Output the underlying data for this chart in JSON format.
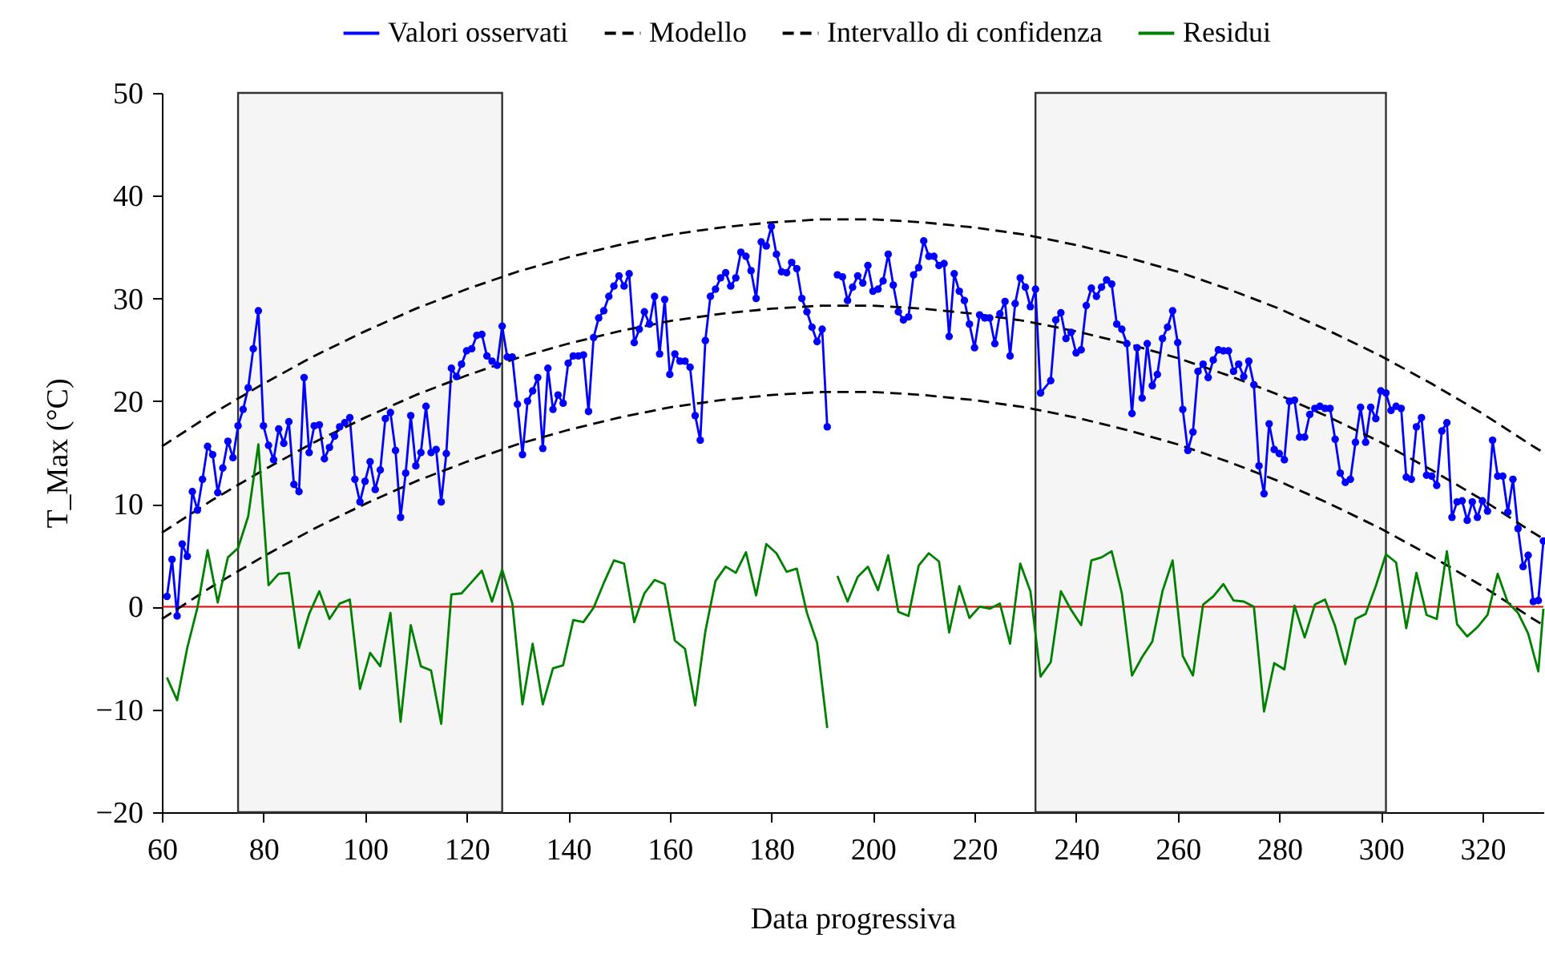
{
  "chart_data": {
    "type": "line",
    "xlabel": "Data progressiva",
    "ylabel": "T_Max (°C)",
    "xlim": [
      60,
      332
    ],
    "ylim": [
      -20,
      50
    ],
    "xticks": [
      60,
      80,
      100,
      120,
      140,
      160,
      180,
      200,
      220,
      240,
      260,
      280,
      300,
      320
    ],
    "yticks": [
      -20,
      -10,
      0,
      10,
      20,
      30,
      40,
      50
    ],
    "grid": false,
    "legend": "top",
    "ref_lines": [
      {
        "axis": "y",
        "value": 0,
        "color": "#e00000"
      }
    ],
    "bands": [
      {
        "axis": "x",
        "from": 75,
        "to": 127,
        "color": "#333333"
      },
      {
        "axis": "x",
        "from": 232,
        "to": 301,
        "color": "#333333"
      }
    ],
    "series": [
      {
        "name": "Valori osservati",
        "color": "#0000ff",
        "marker": "circle",
        "line_style": "solid",
        "x": [
          61,
          62,
          63,
          64,
          65,
          66,
          67,
          68,
          69,
          70,
          71,
          72,
          73,
          74,
          75,
          76,
          77,
          78,
          79,
          80,
          81,
          82,
          83,
          84,
          85,
          86,
          87,
          88,
          89,
          90,
          91,
          92,
          93,
          94,
          95,
          96,
          97,
          98,
          99,
          100,
          101,
          102,
          103,
          104,
          105,
          106,
          107,
          108,
          109,
          110,
          111,
          112,
          113,
          114,
          115,
          116,
          117,
          118,
          119,
          120,
          121,
          122,
          123,
          124,
          125,
          126,
          127,
          128,
          129,
          130,
          131,
          132,
          133,
          134,
          135,
          136,
          137,
          138,
          139,
          140,
          141,
          142,
          143,
          144,
          145,
          146,
          147,
          148,
          149,
          150,
          151,
          152,
          153,
          154,
          155,
          156,
          157,
          158,
          159,
          160,
          161,
          162,
          163,
          164,
          165,
          166,
          167,
          168,
          169,
          170,
          171,
          172,
          173,
          174,
          175,
          176,
          177,
          178,
          179,
          180,
          181,
          182,
          183,
          184,
          185,
          186,
          187,
          188,
          189,
          190,
          191,
          192,
          193,
          194,
          195,
          196,
          197,
          198,
          199,
          200,
          201,
          202,
          203,
          204,
          205,
          206,
          207,
          208,
          209,
          210,
          211,
          212,
          213,
          214,
          215,
          216,
          217,
          218,
          219,
          220,
          221,
          222,
          223,
          224,
          225,
          226,
          227,
          228,
          229,
          230,
          231,
          232,
          233,
          235,
          236,
          237,
          238,
          239,
          240,
          241,
          242,
          243,
          244,
          245,
          246,
          247,
          248,
          249,
          250,
          251,
          252,
          253,
          254,
          255,
          256,
          257,
          258,
          259,
          260,
          261,
          262,
          263,
          264,
          265,
          266,
          267,
          268,
          269,
          270,
          271,
          272,
          273,
          274,
          275,
          276,
          277,
          278,
          279,
          280,
          281,
          282,
          283,
          284,
          285,
          286,
          287,
          288,
          289,
          290,
          291,
          292,
          293,
          294,
          295,
          296,
          297,
          298,
          299,
          300,
          301,
          302,
          303,
          304,
          305,
          306,
          307,
          308,
          309,
          310,
          311,
          312,
          313,
          314,
          315,
          316,
          317,
          318,
          319,
          320,
          321,
          322,
          323,
          324,
          325,
          326,
          327,
          328,
          329,
          330,
          331,
          332
        ],
        "values": [
          1.0,
          4.6,
          -0.9,
          6.1,
          4.9,
          11.2,
          9.4,
          12.4,
          15.6,
          14.8,
          11.1,
          13.5,
          16.1,
          14.5,
          17.6,
          19.2,
          21.3,
          25.1,
          28.8,
          17.6,
          15.7,
          14.3,
          17.3,
          15.9,
          18.0,
          11.9,
          11.2,
          22.3,
          15.0,
          17.6,
          17.7,
          14.4,
          15.5,
          16.6,
          17.5,
          17.9,
          18.4,
          12.4,
          10.2,
          12.2,
          14.1,
          11.4,
          13.3,
          18.3,
          18.9,
          15.2,
          8.7,
          13.0,
          18.6,
          13.7,
          15.0,
          19.5,
          15.0,
          15.3,
          10.2,
          14.9,
          23.2,
          22.4,
          23.6,
          24.9,
          25.1,
          26.4,
          26.5,
          24.4,
          23.9,
          23.5,
          27.3,
          24.3,
          24.3,
          19.7,
          14.8,
          20.0,
          21.0,
          22.3,
          15.4,
          23.2,
          19.2,
          20.6,
          19.8,
          23.7,
          24.4,
          24.4,
          24.5,
          19.0,
          26.2,
          28.1,
          28.8,
          30.2,
          31.2,
          32.2,
          31.2,
          32.4,
          25.7,
          27.0,
          28.7,
          27.5,
          30.2,
          24.6,
          29.9,
          22.6,
          24.6,
          23.9,
          23.9,
          23.3,
          18.6,
          16.2,
          25.9,
          30.2,
          30.9,
          32.0,
          32.5,
          31.2,
          32.0,
          34.5,
          34.1,
          32.7,
          30.0,
          35.5,
          35.1,
          37.0,
          34.3,
          32.6,
          32.5,
          33.5,
          32.9,
          30.0,
          28.7,
          27.2,
          25.8,
          27.0,
          17.5,
          null,
          32.3,
          32.1,
          29.8,
          31.1,
          32.2,
          31.5,
          33.2,
          30.7,
          30.9,
          31.7,
          34.3,
          31.3,
          28.7,
          27.9,
          28.2,
          32.3,
          33.0,
          35.6,
          34.1,
          34.1,
          33.2,
          33.4,
          26.3,
          32.4,
          30.7,
          29.8,
          27.5,
          25.2,
          28.4,
          28.1,
          28.1,
          25.6,
          28.5,
          29.7,
          24.4,
          29.5,
          32.0,
          31.1,
          29.2,
          30.9,
          20.8,
          22.0,
          27.9,
          28.6,
          26.1,
          26.7,
          24.7,
          25.0,
          29.3,
          31.0,
          30.2,
          31.1,
          31.8,
          31.4,
          27.5,
          27.0,
          25.6,
          18.8,
          25.2,
          20.3,
          25.6,
          21.5,
          22.6,
          26.1,
          27.2,
          28.8,
          25.7,
          19.2,
          15.2,
          17.0,
          22.9,
          23.6,
          22.3,
          24.0,
          25.0,
          24.9,
          24.9,
          22.9,
          23.6,
          22.4,
          23.9,
          21.6,
          13.7,
          11.0,
          17.8,
          15.3,
          14.9,
          14.3,
          20.0,
          20.1,
          16.5,
          16.5,
          18.7,
          19.3,
          19.5,
          19.3,
          19.3,
          16.3,
          13.0,
          12.1,
          12.4,
          16.0,
          19.4,
          16.0,
          19.4,
          18.3,
          21.0,
          20.8,
          19.1,
          19.5,
          19.3,
          12.6,
          12.4,
          17.5,
          18.4,
          12.8,
          12.7,
          11.8,
          17.1,
          17.9,
          8.7,
          10.2,
          10.3,
          8.4,
          10.2,
          8.7,
          10.3,
          9.3,
          16.2,
          12.7,
          12.7,
          9.2,
          12.4,
          7.6,
          3.9,
          5.0,
          0.5,
          0.6,
          6.4
        ]
      },
      {
        "name": "Modello",
        "color": "#000000",
        "line_style": "dashed",
        "x": [
          60,
          70,
          80,
          90,
          100,
          110,
          120,
          130,
          140,
          150,
          160,
          170,
          180,
          190,
          200,
          210,
          220,
          230,
          240,
          250,
          260,
          270,
          280,
          290,
          300,
          310,
          320,
          330,
          332
        ],
        "values": [
          7.2,
          10.4,
          13.3,
          16.0,
          18.4,
          20.6,
          22.5,
          24.2,
          25.6,
          26.8,
          27.8,
          28.5,
          29.0,
          29.3,
          29.3,
          29.0,
          28.5,
          27.8,
          26.8,
          25.6,
          24.2,
          22.5,
          20.6,
          18.4,
          16.0,
          13.3,
          10.4,
          7.2,
          6.6
        ]
      },
      {
        "name": "Intervallo di confidenza",
        "color": "#000000",
        "line_style": "dashed",
        "x": [
          60,
          70,
          80,
          90,
          100,
          110,
          120,
          130,
          140,
          150,
          160,
          170,
          180,
          190,
          200,
          210,
          220,
          230,
          240,
          250,
          260,
          270,
          280,
          290,
          300,
          310,
          320,
          330,
          332
        ],
        "values": [
          15.6,
          18.8,
          21.7,
          24.4,
          26.8,
          29.0,
          30.9,
          32.6,
          34.0,
          35.2,
          36.2,
          36.9,
          37.4,
          37.7,
          37.7,
          37.4,
          36.9,
          36.2,
          35.2,
          34.0,
          32.6,
          30.9,
          29.0,
          26.8,
          24.4,
          21.7,
          18.8,
          15.6,
          15.0
        ]
      },
      {
        "color": "#000000",
        "line_style": "dashed",
        "x": [
          60,
          70,
          80,
          90,
          100,
          110,
          120,
          130,
          140,
          150,
          160,
          170,
          180,
          190,
          200,
          210,
          220,
          230,
          240,
          250,
          260,
          270,
          280,
          290,
          300,
          310,
          320,
          330,
          332
        ],
        "values": [
          -1.2,
          2.0,
          4.9,
          7.6,
          10.0,
          12.2,
          14.1,
          15.8,
          17.2,
          18.4,
          19.4,
          20.1,
          20.6,
          20.9,
          20.9,
          20.6,
          20.1,
          19.4,
          18.4,
          17.2,
          15.8,
          14.1,
          12.2,
          10.0,
          7.6,
          4.9,
          2.0,
          -1.2,
          -1.8
        ]
      },
      {
        "name": "Residui",
        "color": "#008000",
        "line_style": "solid",
        "x": [
          61,
          63,
          65,
          67,
          69,
          71,
          73,
          75,
          77,
          79,
          81,
          83,
          85,
          87,
          89,
          91,
          93,
          95,
          97,
          99,
          101,
          103,
          105,
          107,
          109,
          111,
          113,
          115,
          117,
          119,
          121,
          123,
          125,
          127,
          129,
          131,
          133,
          135,
          137,
          139,
          141,
          143,
          145,
          147,
          149,
          151,
          153,
          155,
          157,
          159,
          161,
          163,
          165,
          167,
          169,
          171,
          173,
          175,
          177,
          179,
          181,
          183,
          185,
          187,
          189,
          191,
          192,
          193,
          195,
          197,
          199,
          201,
          203,
          205,
          207,
          209,
          211,
          213,
          215,
          217,
          219,
          221,
          223,
          225,
          227,
          229,
          231,
          233,
          235,
          237,
          239,
          241,
          243,
          245,
          247,
          249,
          251,
          253,
          255,
          257,
          259,
          261,
          263,
          265,
          267,
          269,
          271,
          273,
          275,
          277,
          279,
          281,
          283,
          285,
          287,
          289,
          291,
          293,
          295,
          297,
          299,
          301,
          303,
          305,
          307,
          309,
          311,
          313,
          315,
          317,
          319,
          321,
          323,
          325,
          327,
          329,
          331,
          332
        ],
        "values": [
          -6.9,
          -9.1,
          -4.0,
          -0.1,
          5.5,
          0.4,
          4.8,
          5.7,
          8.8,
          15.8,
          2.1,
          3.2,
          3.3,
          -4.0,
          -0.7,
          1.5,
          -1.2,
          0.3,
          0.7,
          -8.0,
          -4.5,
          -5.8,
          -0.6,
          -11.2,
          -1.8,
          -5.8,
          -6.2,
          -11.4,
          1.2,
          1.3,
          2.4,
          3.5,
          0.5,
          3.6,
          0.3,
          -9.5,
          -3.6,
          -9.5,
          -6.0,
          -5.7,
          -1.3,
          -1.5,
          -0.1,
          2.3,
          4.5,
          4.2,
          -1.5,
          1.3,
          2.6,
          2.2,
          -3.3,
          -4.1,
          -9.6,
          -2.4,
          2.5,
          3.9,
          3.3,
          5.3,
          1.1,
          6.1,
          5.2,
          3.4,
          3.7,
          -0.6,
          -3.5,
          -11.8,
          null,
          3.0,
          0.5,
          2.9,
          3.9,
          1.6,
          5.0,
          -0.5,
          -0.9,
          4.0,
          5.2,
          4.4,
          -2.5,
          2.0,
          -1.1,
          0.0,
          -0.2,
          0.3,
          -3.6,
          4.2,
          1.5,
          -6.8,
          -5.4,
          1.5,
          -0.3,
          -1.8,
          4.5,
          4.8,
          5.4,
          1.3,
          -6.7,
          -4.9,
          -3.4,
          1.5,
          4.5,
          -4.8,
          -6.7,
          0.2,
          1.0,
          2.2,
          0.6,
          0.5,
          0.0,
          -10.2,
          -5.5,
          -6.1,
          0.1,
          -3.0,
          0.2,
          0.7,
          -1.9,
          -5.6,
          -1.2,
          -0.7,
          2.0,
          5.1,
          4.3,
          -2.1,
          3.3,
          -0.8,
          -1.2,
          5.4,
          -1.7,
          -2.9,
          -2.0,
          -0.8,
          3.2,
          0.4,
          -0.6,
          -2.6,
          -6.3,
          -0.2
        ]
      }
    ]
  }
}
